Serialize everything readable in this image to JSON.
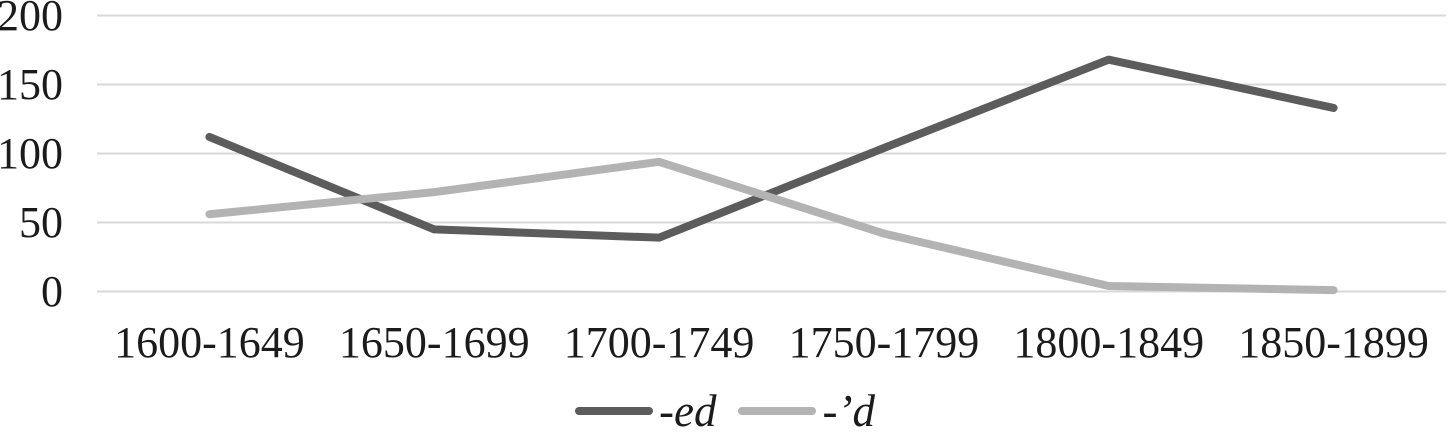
{
  "chart_data": {
    "type": "line",
    "title": "",
    "xlabel": "",
    "ylabel": "",
    "categories": [
      "1600-1649",
      "1650-1699",
      "1700-1749",
      "1750-1799",
      "1800-1849",
      "1850-1899"
    ],
    "series": [
      {
        "name": "-ed",
        "color": "#5c5c5c",
        "values": [
          112,
          45,
          39,
          104,
          168,
          133
        ]
      },
      {
        "name": "-’d",
        "color": "#b3b3b3",
        "values": [
          56,
          72,
          94,
          42,
          4,
          1
        ]
      }
    ],
    "ylim": [
      0,
      200
    ],
    "yticks": [
      0,
      50,
      100,
      150,
      200
    ],
    "grid": true,
    "gridline_color": "#d8d8d8",
    "text_color": "#1b1b1b",
    "legend_position": "bottom"
  }
}
